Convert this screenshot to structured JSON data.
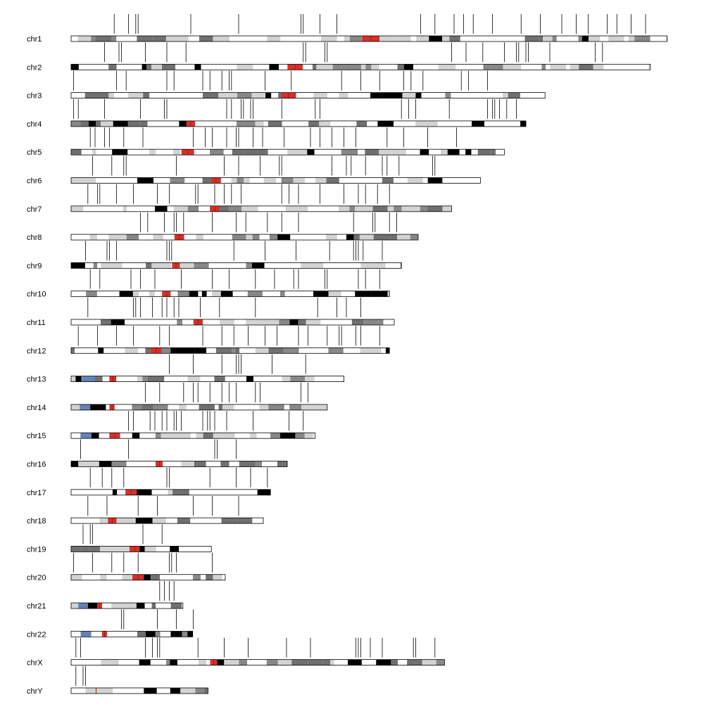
{
  "colors": {
    "gneg": "#ffffff",
    "gpos25": "#d3d3d3",
    "gpos50": "#888888",
    "gpos75": "#707070",
    "gpos100": "#000000",
    "acen": "#d92f27",
    "stalk": "#6483b4",
    "marker": "#000000",
    "outline": "#000000"
  },
  "chromosomes": [
    {
      "name": "chrX",
      "length": 156.0,
      "centromere": [
        58.1,
        61.0
      ],
      "stalk": null,
      "markers": [
        2,
        4,
        31,
        34,
        36,
        37,
        53,
        64,
        74,
        90,
        100,
        119,
        120,
        121,
        125,
        130,
        143,
        144,
        152
      ]
    },
    {
      "name": "chrY",
      "length": 57.2,
      "centromere": [
        10.3,
        10.6
      ],
      "stalk": null,
      "markers": [
        2,
        5,
        6
      ]
    },
    {
      "name": "chr1",
      "length": 249.0,
      "centromere": [
        121.5,
        128.9
      ],
      "stalk": null,
      "markers": [
        18,
        24,
        27,
        28,
        50,
        70,
        96,
        97,
        104,
        111,
        146,
        152,
        160,
        164,
        168,
        176,
        188,
        196,
        205,
        211,
        216,
        224,
        228,
        234,
        240
      ]
    },
    {
      "name": "chr2",
      "length": 242.0,
      "centromere": [
        90.4,
        96.8
      ],
      "stalk": null,
      "markers": [
        14,
        20,
        21,
        31,
        40,
        48,
        97,
        98,
        106,
        107,
        159,
        165,
        172,
        181,
        186,
        187,
        190,
        191,
        200,
        219,
        222
      ]
    },
    {
      "name": "chr3",
      "length": 198.0,
      "centromere": [
        87.8,
        94.0
      ],
      "stalk": null,
      "markers": [
        1,
        19,
        23,
        40,
        43,
        55,
        58,
        63,
        66,
        67,
        81,
        92,
        113,
        121,
        129,
        139,
        142,
        147,
        163,
        166,
        174
      ]
    },
    {
      "name": "chr4",
      "length": 190.0,
      "centromere": [
        48.2,
        51.8
      ],
      "stalk": null,
      "markers": [
        1,
        3,
        14,
        29,
        39,
        40,
        65,
        67,
        71,
        72,
        75,
        76,
        88,
        102,
        104,
        138,
        141,
        144,
        158,
        174,
        176,
        177,
        179,
        182,
        186
      ]
    },
    {
      "name": "chr5",
      "length": 181.0,
      "centromere": [
        46.1,
        51.4
      ],
      "stalk": null,
      "markers": [
        8,
        10,
        14,
        16,
        22,
        30,
        51,
        56,
        59,
        65,
        69,
        70,
        76,
        80,
        89,
        100,
        104,
        109,
        114,
        119,
        132,
        139,
        149,
        161
      ]
    },
    {
      "name": "chr6",
      "length": 171.0,
      "centromere": [
        58.5,
        62.6
      ],
      "stalk": null,
      "markers": [
        9,
        17,
        22,
        23,
        44,
        64,
        70,
        79,
        87,
        88,
        109,
        115,
        117,
        123,
        130,
        132,
        137,
        151,
        152
      ]
    },
    {
      "name": "chr7",
      "length": 159.0,
      "centromere": [
        58.1,
        62.1
      ],
      "stalk": null,
      "markers": [
        7,
        11,
        12,
        19,
        26,
        36,
        41,
        52,
        53,
        60,
        64,
        67,
        71,
        88,
        91,
        95,
        104,
        114,
        120,
        123,
        128,
        133
      ]
    },
    {
      "name": "chr8",
      "length": 145.0,
      "centromere": [
        43.2,
        47.2
      ],
      "stalk": null,
      "markers": [
        29,
        32,
        39,
        43,
        44,
        47,
        59,
        69,
        73,
        82,
        88,
        95,
        118,
        126,
        127,
        133,
        136
      ]
    },
    {
      "name": "chr9",
      "length": 138.0,
      "centromere": [
        42.2,
        45.5
      ],
      "stalk": null,
      "markers": [
        6,
        15,
        16,
        19,
        40,
        41,
        42,
        68,
        81,
        94,
        108,
        118,
        119,
        120,
        122,
        130
      ]
    },
    {
      "name": "chr10",
      "length": 133.0,
      "centromere": [
        38.0,
        41.6
      ],
      "stalk": null,
      "markers": [
        8,
        12,
        25,
        29,
        35,
        46,
        59,
        66,
        77,
        85,
        93,
        95,
        106,
        107,
        120,
        123,
        129
      ]
    },
    {
      "name": "chr11",
      "length": 135.0,
      "centromere": [
        51.1,
        55.0
      ],
      "stalk": null,
      "markers": [
        7,
        26,
        27,
        29,
        34,
        38,
        40,
        43,
        45,
        54,
        62,
        77,
        103,
        111,
        115,
        121
      ]
    },
    {
      "name": "chr12",
      "length": 133.0,
      "centromere": [
        33.2,
        37.8
      ],
      "stalk": null,
      "markers": [
        3,
        11,
        19,
        26,
        37,
        41,
        55,
        63,
        68,
        74,
        81,
        86,
        95,
        99,
        107,
        112,
        113,
        119,
        121,
        129
      ]
    },
    {
      "name": "chr13",
      "length": 114.0,
      "centromere": [
        16.0,
        18.9
      ],
      "stalk": [
        4.5,
        10.0
      ],
      "markers": [
        41,
        51,
        63,
        69,
        70,
        71,
        84,
        98
      ]
    },
    {
      "name": "chr14",
      "length": 107.0,
      "centromere": [
        16.0,
        18.2
      ],
      "stalk": [
        3.6,
        8.0
      ],
      "markers": [
        31,
        37,
        47,
        51,
        53,
        58,
        63,
        66,
        69,
        77,
        79,
        96,
        99
      ]
    },
    {
      "name": "chr15",
      "length": 102.0,
      "centromere": [
        16.0,
        20.5
      ],
      "stalk": [
        3.9,
        8.5
      ],
      "markers": [
        24,
        26,
        33,
        35,
        38,
        40,
        43,
        44,
        46,
        55,
        57,
        58,
        60,
        65,
        76,
        91,
        97
      ]
    },
    {
      "name": "chr16",
      "length": 90.3,
      "centromere": [
        35.3,
        38.3
      ],
      "stalk": null,
      "markers": [
        4,
        24,
        60,
        61,
        69
      ]
    },
    {
      "name": "chr17",
      "length": 83.3,
      "centromere": [
        22.7,
        27.4
      ],
      "stalk": null,
      "markers": [
        8,
        13,
        17,
        22,
        40,
        41,
        58,
        69,
        75,
        82
      ]
    },
    {
      "name": "chr18",
      "length": 80.3,
      "centromere": [
        15.4,
        19.0
      ],
      "stalk": null,
      "markers": [
        7,
        15,
        28,
        36,
        51,
        59,
        70
      ]
    },
    {
      "name": "chr19",
      "length": 58.6,
      "centromere": [
        24.4,
        28.6
      ],
      "stalk": null,
      "markers": [
        5,
        8,
        9,
        30,
        38
      ]
    },
    {
      "name": "chr20",
      "length": 64.4,
      "centromere": [
        25.6,
        30.4
      ],
      "stalk": null,
      "markers": [
        1,
        9,
        17,
        22,
        28,
        41,
        42,
        44,
        59
      ]
    },
    {
      "name": "chr21",
      "length": 46.7,
      "centromere": [
        10.9,
        13.0
      ],
      "stalk": [
        3.0,
        7.0
      ],
      "markers": [
        37,
        39,
        41,
        43
      ]
    },
    {
      "name": "chr22",
      "length": 50.8,
      "centromere": [
        12.9,
        15.0
      ],
      "stalk": [
        4.0,
        8.4
      ],
      "markers": [
        21,
        22,
        36,
        44,
        51
      ]
    }
  ],
  "display_order": [
    "chr1",
    "chr2",
    "chr3",
    "chr4",
    "chr5",
    "chr6",
    "chr7",
    "chr8",
    "chr9",
    "chr10",
    "chr11",
    "chr12",
    "chr13",
    "chr14",
    "chr15",
    "chr16",
    "chr17",
    "chr18",
    "chr19",
    "chr20",
    "chr21",
    "chr22",
    "chrX",
    "chrY"
  ]
}
